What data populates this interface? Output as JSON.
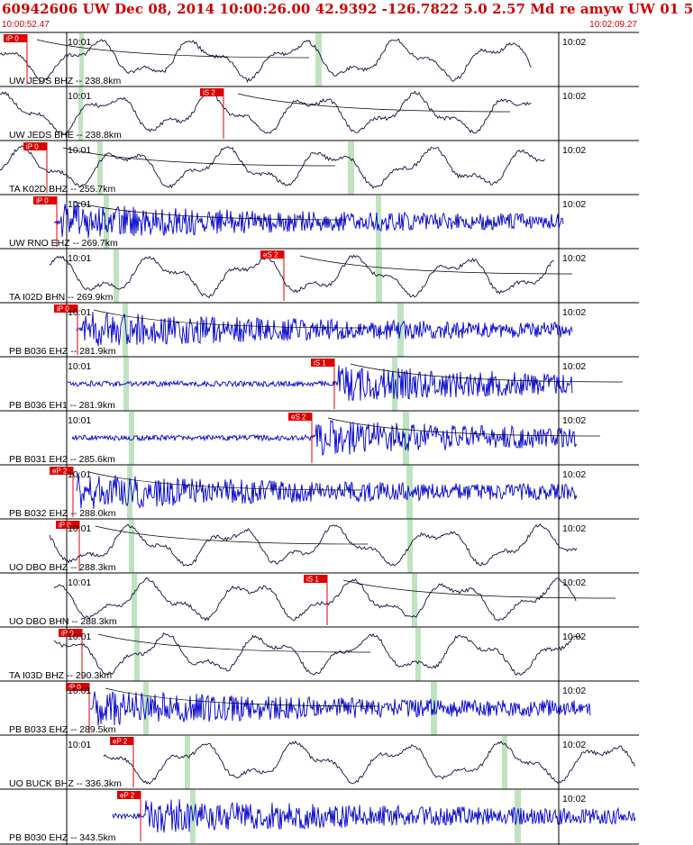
{
  "header": {
    "title": "60942606 UW Dec 08, 2014 10:00:26.00    42.9392 -126.7822  5.0 2.57 Md re amyw UW 01    5",
    "start_time": "10:00:52.47",
    "end_time": "10:02:09.27"
  },
  "colors": {
    "header_text": "#cc0000",
    "pick_flag": "#dd0000",
    "trace_long_period": "#1a0a3a",
    "trace_short_period": "#0000cc",
    "phase_window": "#bfe3bf",
    "travel_time_curve": "#000000"
  },
  "traces": [
    {
      "label": "UW JEDS BHZ -- 238.8km",
      "pick": "iP 0",
      "tick_left": "10:01",
      "tick_right": "10:02",
      "kind": "lp"
    },
    {
      "label": "UW JEDS BHE -- 238.8km",
      "pick": "iS 2",
      "tick_left": "10:01",
      "tick_right": "10:02",
      "kind": "lp"
    },
    {
      "label": "TA K02D BHZ -- 255.7km",
      "pick": "iP 0",
      "tick_left": "10:01",
      "tick_right": "10:02",
      "kind": "lp"
    },
    {
      "label": "UW RNO EHZ -- 269.7km",
      "pick": "iP 0",
      "tick_left": "10:01",
      "tick_right": "10:02",
      "kind": "sp"
    },
    {
      "label": "TA I02D BHN -- 269.9km",
      "pick": "eS 2",
      "tick_left": "10:01",
      "tick_right": "10:02",
      "kind": "lp"
    },
    {
      "label": "PB B036 EHZ -- 281.9km",
      "pick": "iP 0",
      "tick_left": "10:01",
      "tick_right": "10:02",
      "kind": "sp"
    },
    {
      "label": "PB B036 EH1 -- 281.9km",
      "pick": "iS 1",
      "tick_left": "10:01",
      "tick_right": "10:02",
      "kind": "sp"
    },
    {
      "label": "PB B031 EH2 -- 285.6km",
      "pick": "eS 2",
      "tick_left": "10:01",
      "tick_right": "10:02",
      "kind": "sp"
    },
    {
      "label": "PB B032 EHZ -- 288.0km",
      "pick": "eP 2",
      "tick_left": "10:01",
      "tick_right": "10:02",
      "kind": "sp"
    },
    {
      "label": "UO DBO BHZ -- 288.3km",
      "pick": "iP 0",
      "tick_left": "10:01",
      "tick_right": "10:02",
      "kind": "lp"
    },
    {
      "label": "UO DBO BHN -- 288.3km",
      "pick": "iS 1",
      "tick_left": "10:01",
      "tick_right": "10:02",
      "kind": "lp"
    },
    {
      "label": "TA I03D BHZ -- 290.3km",
      "pick": "iP 0",
      "tick_left": "10:01",
      "tick_right": "10:02",
      "kind": "lp"
    },
    {
      "label": "PB B033 EHZ -- 289.5km",
      "pick": "iP 0",
      "tick_left": "10:01",
      "tick_right": "10:02",
      "kind": "sp"
    },
    {
      "label": "UO BUCK BHZ -- 336.3km",
      "pick": "eP 2",
      "tick_left": "10:01",
      "tick_right": "10:02",
      "kind": "lp"
    },
    {
      "label": "PB B030 EHZ -- 343.5km",
      "pick": "eP 2",
      "tick_left": "",
      "tick_right": "10:02",
      "kind": "sp"
    }
  ]
}
